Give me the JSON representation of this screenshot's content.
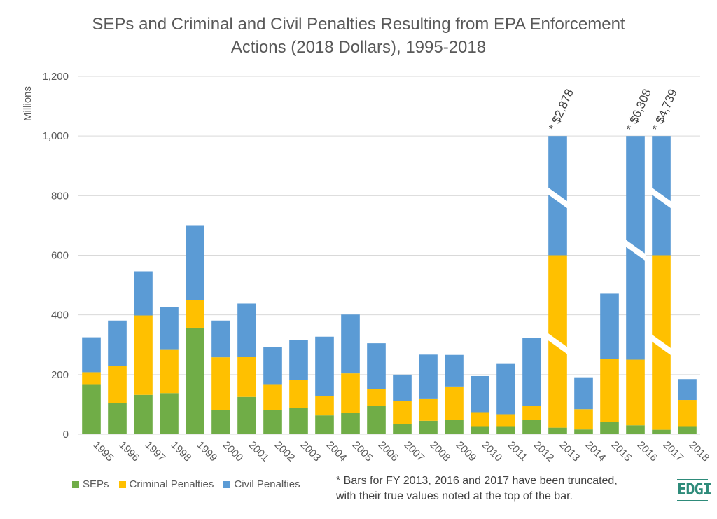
{
  "chart_data": {
    "type": "bar",
    "stacked": true,
    "title_lines": [
      "SEPs and Criminal and Civil Penalties Resulting from EPA Enforcement",
      "Actions (2018 Dollars), 1995-2018"
    ],
    "ylabel": "Millions",
    "xlabel": "",
    "ylim": [
      0,
      1200
    ],
    "yticks": [
      0,
      200,
      400,
      600,
      800,
      1000,
      1200
    ],
    "ytick_labels": [
      "0",
      "200",
      "400",
      "600",
      "800",
      "1,000",
      "1,200"
    ],
    "grid": true,
    "legend_position": "bottom-left",
    "categories": [
      "1995",
      "1996",
      "1997",
      "1998",
      "1999",
      "2000",
      "2001",
      "2002",
      "2003",
      "2004",
      "2005",
      "2006",
      "2007",
      "2008",
      "2009",
      "2010",
      "2011",
      "2012",
      "2013",
      "2014",
      "2015",
      "2016",
      "2017",
      "2018"
    ],
    "series": [
      {
        "name": "SEPs",
        "color": "#70ad47",
        "values": [
          168,
          105,
          132,
          138,
          357,
          80,
          125,
          80,
          87,
          63,
          72,
          95,
          35,
          45,
          47,
          27,
          27,
          48,
          22,
          16,
          40,
          30,
          15,
          27
        ]
      },
      {
        "name": "Criminal Penalties",
        "color": "#ffc000",
        "values": [
          40,
          123,
          266,
          147,
          93,
          178,
          135,
          88,
          95,
          65,
          132,
          57,
          77,
          75,
          113,
          47,
          40,
          47,
          578,
          68,
          213,
          220,
          585,
          88
        ]
      },
      {
        "name": "Civil Penalties",
        "color": "#5b9bd5",
        "values": [
          117,
          153,
          148,
          141,
          251,
          123,
          178,
          124,
          133,
          199,
          197,
          153,
          88,
          147,
          106,
          121,
          171,
          227,
          400,
          107,
          218,
          750,
          400,
          70
        ]
      }
    ],
    "truncated": [
      {
        "category": "2013",
        "label": "* $2,878"
      },
      {
        "category": "2016",
        "label": "* $6,308"
      },
      {
        "category": "2017",
        "label": "* $4,739"
      }
    ]
  },
  "footnote": [
    "* Bars for FY 2013, 2016 and 2017 have been truncated,",
    "with their true values noted at the top of the bar."
  ],
  "logo_text": "EDGI"
}
